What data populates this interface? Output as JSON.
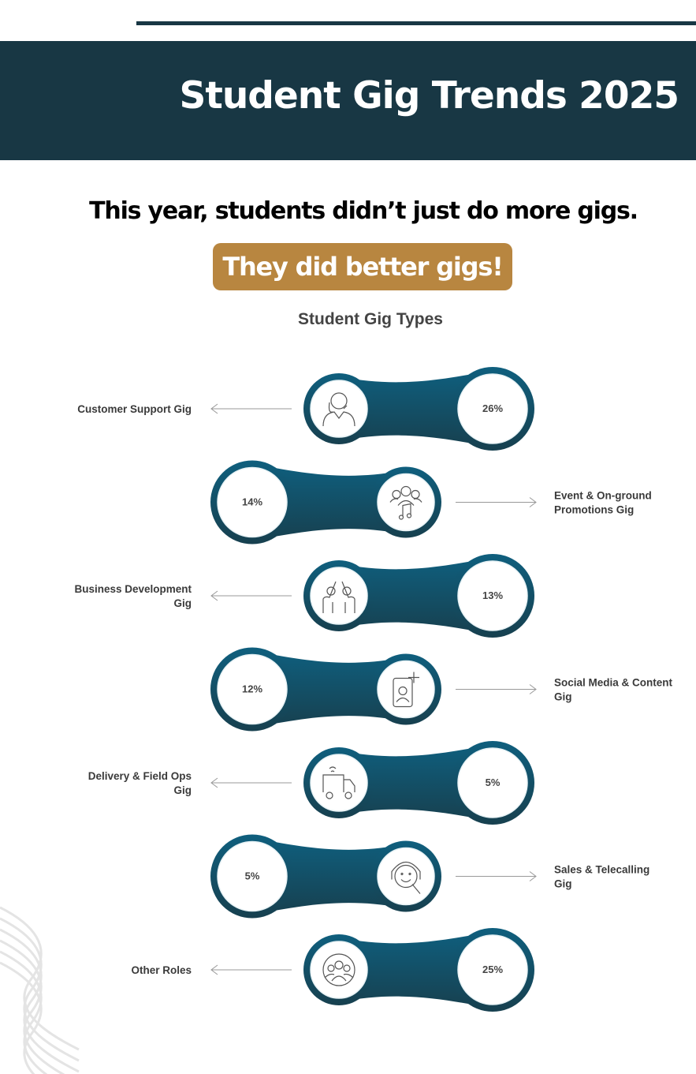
{
  "header": {
    "title": "Student Gig Trends 2025"
  },
  "intro": {
    "line1": "This year, students didn’t just do more gigs.",
    "highlight": "They did better gigs!"
  },
  "colors": {
    "banner": "#183744",
    "accent": "#b88640",
    "ring": "#0f5572",
    "ring_dark": "#17404f"
  },
  "chart_data": {
    "type": "table",
    "title": "Student Gig Types",
    "categories": [
      {
        "label": [
          "Customer Support Gig"
        ],
        "value": "26%",
        "icon": "customer-support-icon"
      },
      {
        "label": [
          "Event & On-ground",
          "Promotions Gig"
        ],
        "value": "14%",
        "icon": "event-music-icon"
      },
      {
        "label": [
          "Business Development",
          "Gig"
        ],
        "value": "13%",
        "icon": "high-five-icon"
      },
      {
        "label": [
          "Social Media & Content",
          "Gig"
        ],
        "value": "12%",
        "icon": "social-media-icon"
      },
      {
        "label": [
          "Delivery & Field Ops",
          "Gig"
        ],
        "value": "5%",
        "icon": "delivery-truck-icon"
      },
      {
        "label": [
          "Sales & Telecalling",
          "Gig"
        ],
        "value": "5%",
        "icon": "headset-icon"
      },
      {
        "label": [
          "Other Roles"
        ],
        "value": "25%",
        "icon": "group-icon"
      }
    ],
    "values": [
      26,
      14,
      13,
      12,
      5,
      5,
      25
    ],
    "unit": "%"
  }
}
